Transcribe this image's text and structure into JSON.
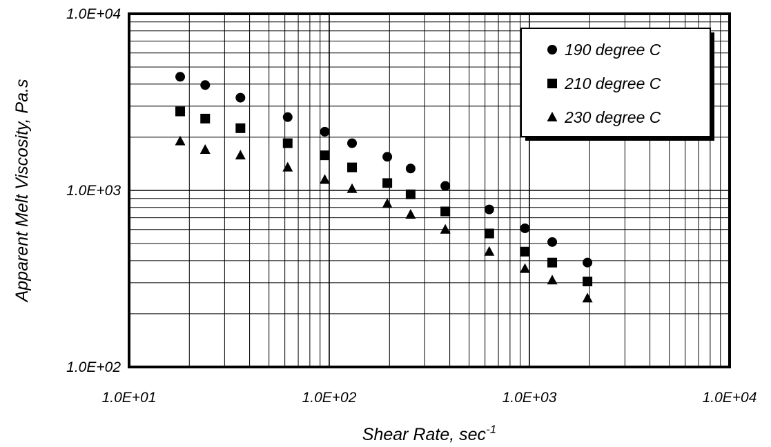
{
  "chart_data": {
    "type": "scatter",
    "x_scale": "log",
    "y_scale": "log",
    "xlim": [
      10,
      10000
    ],
    "ylim": [
      100,
      10000
    ],
    "grid": true,
    "legend_position": "top-right",
    "xlabel": "Shear Rate, sec",
    "xlabel_superscript": "-1",
    "ylabel": "Apparent Melt Viscosity, Pa.s",
    "x_tick_labels": [
      "1.0E+01",
      "1.0E+02",
      "1.0E+03",
      "1.0E+04"
    ],
    "y_tick_labels": [
      "1.0E+02",
      "1.0E+03",
      "1.0E+04"
    ],
    "x": [
      18,
      24,
      36,
      62,
      95,
      130,
      195,
      255,
      380,
      630,
      950,
      1300,
      1950
    ],
    "series": [
      {
        "name": "190 degree C",
        "marker": "circle",
        "values": [
          4400,
          3950,
          3350,
          2600,
          2150,
          1850,
          1550,
          1330,
          1060,
          780,
          610,
          510,
          390
        ]
      },
      {
        "name": "210 degree C",
        "marker": "square",
        "values": [
          2800,
          2550,
          2250,
          1850,
          1580,
          1350,
          1100,
          950,
          760,
          570,
          450,
          390,
          305
        ]
      },
      {
        "name": "230 degree C",
        "marker": "triangle",
        "values": [
          1900,
          1700,
          1580,
          1350,
          1150,
          1020,
          840,
          730,
          600,
          450,
          360,
          310,
          245
        ]
      }
    ]
  }
}
